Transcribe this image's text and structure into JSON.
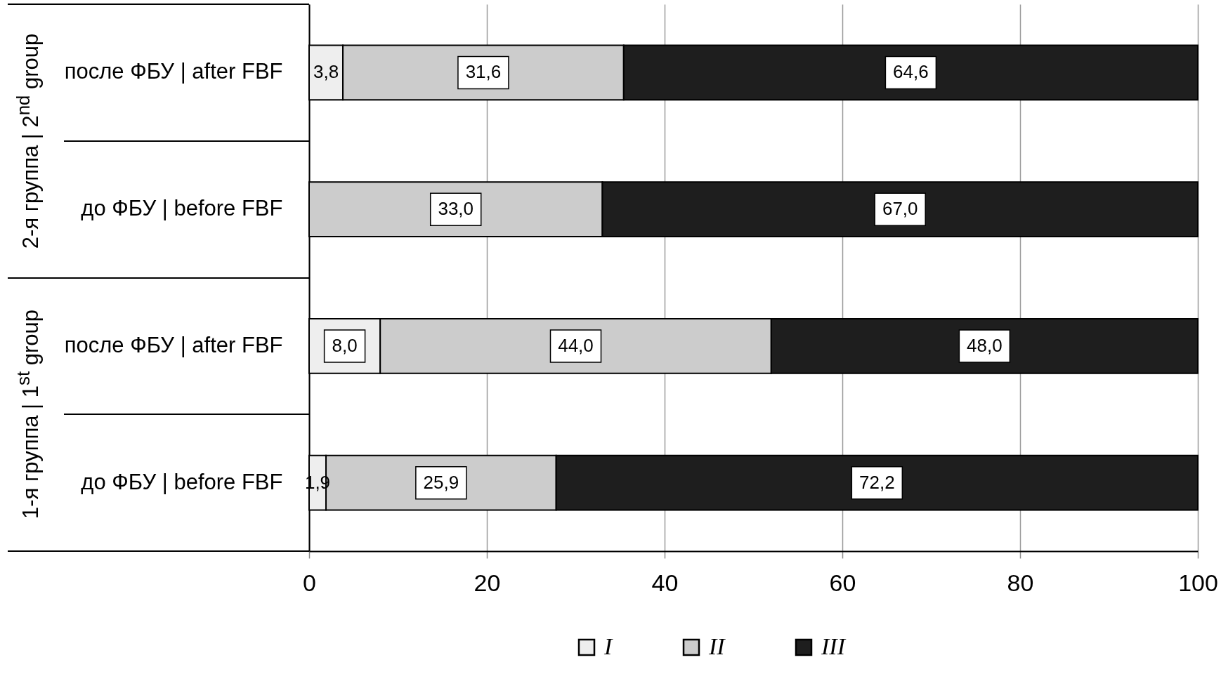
{
  "chart_data": {
    "type": "bar",
    "orientation": "horizontal",
    "stacked": true,
    "categories": [
      "после ФБУ | after FBF",
      "до ФБУ  | before FBF",
      "после ФБУ | after FBF",
      "до ФБУ  | before FBF"
    ],
    "series": [
      {
        "name": "I",
        "color": "#eeeeee",
        "values": [
          3.8,
          null,
          8.0,
          1.9
        ],
        "value_labels": [
          "3,8",
          null,
          "8,0",
          "1,9"
        ]
      },
      {
        "name": "II",
        "color": "#cccccc",
        "values": [
          31.6,
          33.0,
          44.0,
          25.9
        ],
        "value_labels": [
          "31,6",
          "33,0",
          "44,0",
          "25,9"
        ]
      },
      {
        "name": "III",
        "color": "#1e1e1e",
        "values": [
          64.6,
          67.0,
          48.0,
          72.2
        ],
        "value_labels": [
          "64,6",
          "67,0",
          "48,0",
          "72,2"
        ]
      }
    ],
    "xlim": [
      0,
      100
    ],
    "xticks": [
      0,
      20,
      40,
      60,
      80,
      100
    ],
    "grid": "x",
    "legend": "bottom",
    "annotations": [
      "2-я группа | 2$^{nd}$ group",
      "1-я группа | 1$^{st}$ group"
    ]
  }
}
